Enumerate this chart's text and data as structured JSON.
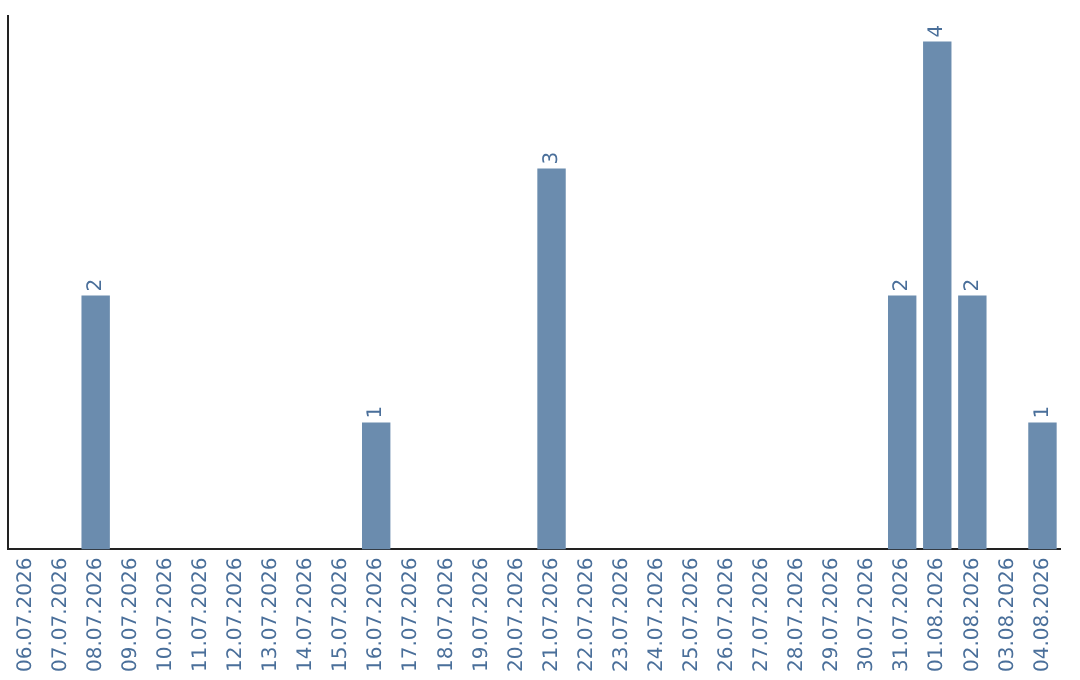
{
  "chart_data": {
    "type": "bar",
    "categories": [
      "06.07.2026",
      "07.07.2026",
      "08.07.2026",
      "09.07.2026",
      "10.07.2026",
      "11.07.2026",
      "12.07.2026",
      "13.07.2026",
      "14.07.2026",
      "15.07.2026",
      "16.07.2026",
      "17.07.2026",
      "18.07.2026",
      "19.07.2026",
      "20.07.2026",
      "21.07.2026",
      "22.07.2026",
      "23.07.2026",
      "24.07.2026",
      "25.07.2026",
      "26.07.2026",
      "27.07.2026",
      "28.07.2026",
      "29.07.2026",
      "30.07.2026",
      "31.07.2026",
      "01.08.2026",
      "02.08.2026",
      "03.08.2026",
      "04.08.2026"
    ],
    "values": [
      null,
      null,
      2,
      null,
      null,
      null,
      null,
      null,
      null,
      null,
      1,
      null,
      null,
      null,
      null,
      3,
      null,
      null,
      null,
      null,
      null,
      null,
      null,
      null,
      null,
      2,
      4,
      2,
      null,
      1
    ],
    "color": "#6b8cae",
    "ylim": [
      0,
      4.2
    ],
    "tick_labels": "x",
    "data_labels": true,
    "grid": false,
    "legend": false
  }
}
